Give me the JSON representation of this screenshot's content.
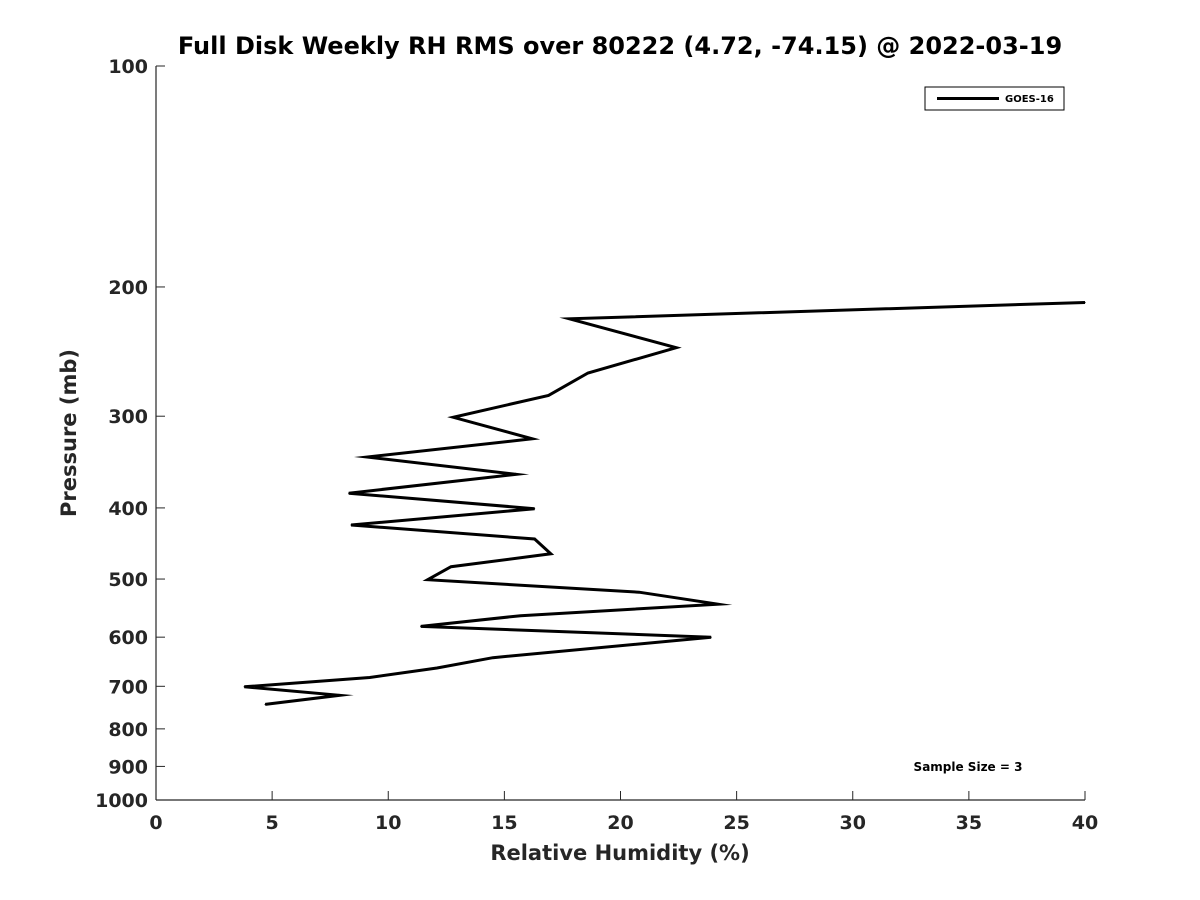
{
  "chart_data": {
    "type": "line",
    "title": "Full Disk Weekly RH RMS over 80222 (4.72, -74.15) @ 2022-03-19",
    "xlabel": "Relative Humidity (%)",
    "ylabel": "Pressure (mb)",
    "xlim": [
      0,
      40
    ],
    "ylim": [
      100,
      1000
    ],
    "y_scale": "log",
    "y_reversed": true,
    "x_ticks": [
      "0",
      "5",
      "10",
      "15",
      "20",
      "25",
      "30",
      "35",
      "40"
    ],
    "y_ticks": [
      "100",
      "200",
      "300",
      "400",
      "500",
      "600",
      "700",
      "800",
      "900",
      "1000"
    ],
    "legend_position": "top-right",
    "annotation": "Sample Size = 3",
    "series": [
      {
        "name": "GOES-16",
        "color": "#000000",
        "x": [
          40.0,
          17.8,
          22.4,
          18.6,
          16.9,
          12.8,
          16.2,
          9.1,
          15.5,
          8.3,
          16.3,
          8.4,
          16.3,
          17.0,
          12.7,
          11.7,
          20.8,
          24.2,
          15.7,
          11.4,
          23.9,
          14.5,
          12.1,
          9.2,
          3.8,
          7.9,
          4.7
        ],
        "y": [
          210,
          221,
          242,
          262,
          281,
          301,
          322,
          341,
          360,
          382,
          401,
          422,
          441,
          462,
          481,
          501,
          521,
          541,
          561,
          580,
          600,
          640,
          661,
          681,
          701,
          720,
          741
        ]
      }
    ]
  }
}
